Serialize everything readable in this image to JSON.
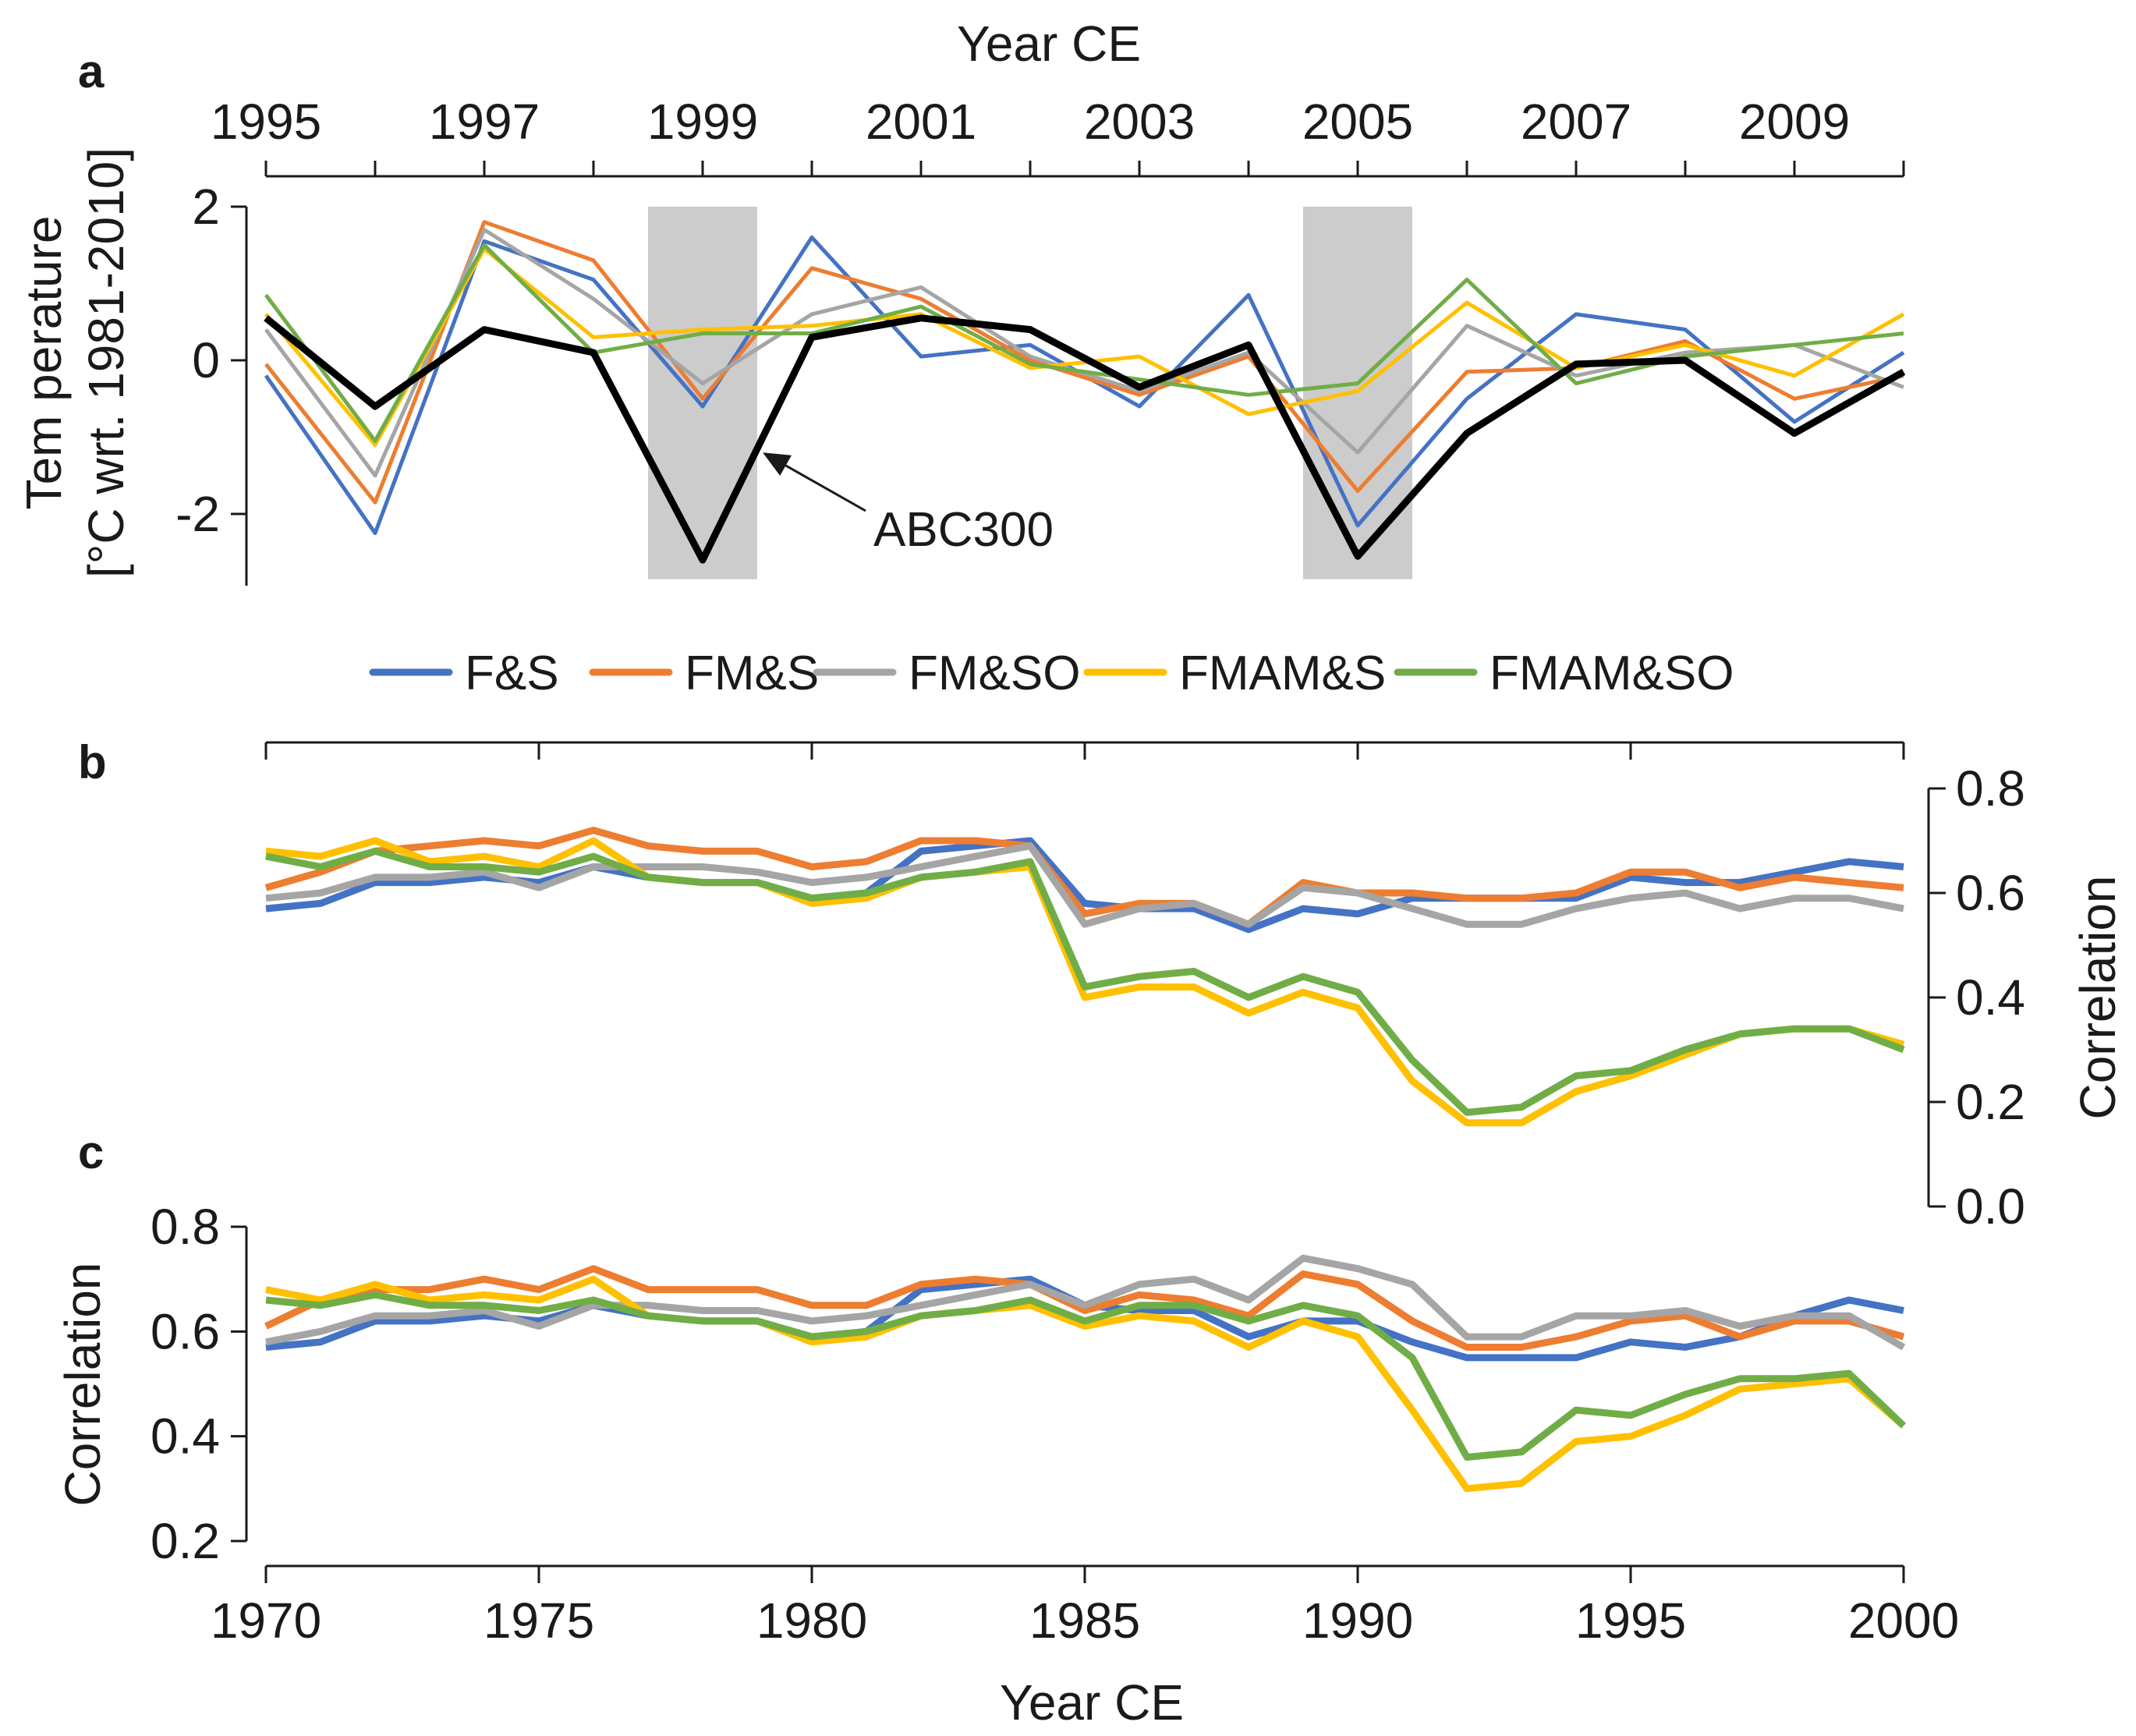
{
  "series_names": [
    "F&S",
    "FM&S",
    "FM&SO",
    "FMAM&S",
    "FMAM&SO"
  ],
  "colors": {
    "F&S": "#4472c4",
    "FM&S": "#ed7d31",
    "FM&SO": "#a5a5a5",
    "FMAM&S": "#ffc000",
    "FMAM&SO": "#70ad47",
    "ABC300": "#000000",
    "shade": "#cccccc"
  },
  "chart_data": [
    {
      "panel": "a",
      "type": "line",
      "xlabel": "Year CE",
      "ylabel_line1": "Tem perature",
      "ylabel_line2": "[°C wrt. 1981-2010]",
      "xlim": [
        1995,
        2010
      ],
      "ylim": [
        -2.85,
        2
      ],
      "x_ticks": [
        1995,
        1997,
        1999,
        2001,
        2003,
        2005,
        2007,
        2009
      ],
      "x_tick_labels": [
        "1995",
        "1997",
        "1999",
        "2001",
        "2003",
        "2005",
        "2007",
        "2009"
      ],
      "y_ticks": [
        2,
        0,
        -2
      ],
      "y_tick_labels": [
        "2",
        "0",
        "-2"
      ],
      "shaded_intervals": [
        [
          1998.5,
          1999.5
        ],
        [
          2004.5,
          2005.5
        ]
      ],
      "annotation": {
        "text": "ABC300",
        "target_x": 1999.55,
        "target_y": -1.2
      },
      "x": [
        1995,
        1996,
        1997,
        1998,
        1999,
        2000,
        2001,
        2002,
        2003,
        2004,
        2005,
        2006,
        2007,
        2008,
        2009,
        2010
      ],
      "series": [
        {
          "name": "F&S",
          "values": [
            -0.2,
            -2.25,
            1.55,
            1.05,
            -0.6,
            1.6,
            0.05,
            0.2,
            -0.6,
            0.85,
            -2.15,
            -0.5,
            0.6,
            0.4,
            -0.8,
            0.1
          ]
        },
        {
          "name": "FM&S",
          "values": [
            -0.05,
            -1.85,
            1.8,
            1.3,
            -0.5,
            1.2,
            0.8,
            0.0,
            -0.45,
            0.05,
            -1.7,
            -0.15,
            -0.1,
            0.25,
            -0.5,
            -0.2
          ]
        },
        {
          "name": "FM&SO",
          "values": [
            0.4,
            -1.5,
            1.7,
            0.8,
            -0.3,
            0.6,
            0.95,
            0.05,
            -0.4,
            0.1,
            -1.2,
            0.45,
            -0.2,
            0.1,
            0.2,
            -0.35
          ]
        },
        {
          "name": "FMAM&S",
          "values": [
            0.6,
            -1.1,
            1.45,
            0.3,
            0.4,
            0.45,
            0.6,
            -0.1,
            0.05,
            -0.7,
            -0.4,
            0.75,
            -0.1,
            0.2,
            -0.2,
            0.6
          ]
        },
        {
          "name": "FMAM&SO",
          "values": [
            0.85,
            -1.05,
            1.5,
            0.1,
            0.35,
            0.35,
            0.7,
            -0.05,
            -0.25,
            -0.45,
            -0.3,
            1.05,
            -0.3,
            0.05,
            0.2,
            0.35
          ]
        },
        {
          "name": "ABC300",
          "values": [
            0.55,
            -0.6,
            0.4,
            0.1,
            -2.6,
            0.3,
            0.55,
            0.4,
            -0.35,
            0.2,
            -2.55,
            -0.95,
            -0.05,
            0.0,
            -0.95,
            -0.15
          ]
        }
      ]
    },
    {
      "panel": "b",
      "type": "line",
      "xlabel": "",
      "ylabel": "Correlation",
      "xlim": [
        1970,
        2000
      ],
      "ylim": [
        0,
        0.8
      ],
      "y_ticks": [
        0.8,
        0.6,
        0.4,
        0.2,
        0.0
      ],
      "y_tick_labels": [
        "0.8",
        "0.6",
        "0.4",
        "0.2",
        "0.0"
      ],
      "x": [
        1970,
        1971,
        1972,
        1973,
        1974,
        1975,
        1976,
        1977,
        1978,
        1979,
        1980,
        1981,
        1982,
        1983,
        1984,
        1985,
        1986,
        1987,
        1988,
        1989,
        1990,
        1991,
        1992,
        1993,
        1994,
        1995,
        1996,
        1997,
        1998,
        1999,
        2000
      ],
      "series": [
        {
          "name": "F&S",
          "values": [
            0.57,
            0.58,
            0.62,
            0.62,
            0.63,
            0.62,
            0.65,
            0.63,
            0.62,
            0.62,
            0.59,
            0.6,
            0.68,
            0.69,
            0.7,
            0.58,
            0.57,
            0.57,
            0.53,
            0.57,
            0.56,
            0.59,
            0.59,
            0.59,
            0.59,
            0.63,
            0.62,
            0.62,
            0.64,
            0.66,
            0.65
          ]
        },
        {
          "name": "FM&S",
          "values": [
            0.61,
            0.64,
            0.68,
            0.69,
            0.7,
            0.69,
            0.72,
            0.69,
            0.68,
            0.68,
            0.65,
            0.66,
            0.7,
            0.7,
            0.69,
            0.56,
            0.58,
            0.58,
            0.54,
            0.62,
            0.6,
            0.6,
            0.59,
            0.59,
            0.6,
            0.64,
            0.64,
            0.61,
            0.63,
            0.62,
            0.61
          ]
        },
        {
          "name": "FM&SO",
          "values": [
            0.59,
            0.6,
            0.63,
            0.63,
            0.64,
            0.61,
            0.65,
            0.65,
            0.65,
            0.64,
            0.62,
            0.63,
            0.65,
            0.67,
            0.69,
            0.54,
            0.57,
            0.58,
            0.54,
            0.61,
            0.6,
            0.57,
            0.54,
            0.54,
            0.57,
            0.59,
            0.6,
            0.57,
            0.59,
            0.59,
            0.57
          ]
        },
        {
          "name": "FMAM&S",
          "values": [
            0.68,
            0.67,
            0.7,
            0.66,
            0.67,
            0.65,
            0.7,
            0.63,
            0.62,
            0.62,
            0.58,
            0.59,
            0.63,
            0.64,
            0.65,
            0.4,
            0.42,
            0.42,
            0.37,
            0.41,
            0.38,
            0.24,
            0.16,
            0.16,
            0.22,
            0.25,
            0.29,
            0.33,
            0.34,
            0.34,
            0.31
          ]
        },
        {
          "name": "FMAM&SO",
          "values": [
            0.67,
            0.65,
            0.68,
            0.65,
            0.65,
            0.64,
            0.67,
            0.63,
            0.62,
            0.62,
            0.59,
            0.6,
            0.63,
            0.64,
            0.66,
            0.42,
            0.44,
            0.45,
            0.4,
            0.44,
            0.41,
            0.28,
            0.18,
            0.19,
            0.25,
            0.26,
            0.3,
            0.33,
            0.34,
            0.34,
            0.3
          ]
        }
      ]
    },
    {
      "panel": "c",
      "type": "line",
      "xlabel": "Year CE",
      "ylabel": "Correlation",
      "xlim": [
        1970,
        2000
      ],
      "ylim": [
        0.2,
        0.8
      ],
      "x_ticks": [
        1970,
        1975,
        1980,
        1985,
        1990,
        1995,
        2000
      ],
      "x_tick_labels": [
        "1970",
        "1975",
        "1980",
        "1985",
        "1990",
        "1995",
        "2000"
      ],
      "y_ticks": [
        0.8,
        0.6,
        0.4,
        0.2
      ],
      "y_tick_labels": [
        "0.8",
        "0.6",
        "0.4",
        "0.2"
      ],
      "x": [
        1970,
        1971,
        1972,
        1973,
        1974,
        1975,
        1976,
        1977,
        1978,
        1979,
        1980,
        1981,
        1982,
        1983,
        1984,
        1985,
        1986,
        1987,
        1988,
        1989,
        1990,
        1991,
        1992,
        1993,
        1994,
        1995,
        1996,
        1997,
        1998,
        1999,
        2000
      ],
      "series": [
        {
          "name": "F&S",
          "values": [
            0.57,
            0.58,
            0.62,
            0.62,
            0.63,
            0.62,
            0.65,
            0.63,
            0.62,
            0.62,
            0.59,
            0.6,
            0.68,
            0.69,
            0.7,
            0.65,
            0.64,
            0.64,
            0.59,
            0.62,
            0.62,
            0.58,
            0.55,
            0.55,
            0.55,
            0.58,
            0.57,
            0.59,
            0.63,
            0.66,
            0.64
          ]
        },
        {
          "name": "FM&S",
          "values": [
            0.61,
            0.66,
            0.68,
            0.68,
            0.7,
            0.68,
            0.72,
            0.68,
            0.68,
            0.68,
            0.65,
            0.65,
            0.69,
            0.7,
            0.69,
            0.64,
            0.67,
            0.66,
            0.63,
            0.71,
            0.69,
            0.62,
            0.57,
            0.57,
            0.59,
            0.62,
            0.63,
            0.59,
            0.62,
            0.62,
            0.59
          ]
        },
        {
          "name": "FM&SO",
          "values": [
            0.58,
            0.6,
            0.63,
            0.63,
            0.64,
            0.61,
            0.65,
            0.65,
            0.64,
            0.64,
            0.62,
            0.63,
            0.65,
            0.67,
            0.69,
            0.65,
            0.69,
            0.7,
            0.66,
            0.74,
            0.72,
            0.69,
            0.59,
            0.59,
            0.63,
            0.63,
            0.64,
            0.61,
            0.63,
            0.63,
            0.57
          ]
        },
        {
          "name": "FMAM&S",
          "values": [
            0.68,
            0.66,
            0.69,
            0.66,
            0.67,
            0.66,
            0.7,
            0.63,
            0.62,
            0.62,
            0.58,
            0.59,
            0.63,
            0.64,
            0.65,
            0.61,
            0.63,
            0.62,
            0.57,
            0.62,
            0.59,
            0.45,
            0.3,
            0.31,
            0.39,
            0.4,
            0.44,
            0.49,
            0.5,
            0.51,
            0.42
          ]
        },
        {
          "name": "FMAM&SO",
          "values": [
            0.66,
            0.65,
            0.67,
            0.65,
            0.65,
            0.64,
            0.66,
            0.63,
            0.62,
            0.62,
            0.59,
            0.6,
            0.63,
            0.64,
            0.66,
            0.62,
            0.65,
            0.65,
            0.62,
            0.65,
            0.63,
            0.55,
            0.36,
            0.37,
            0.45,
            0.44,
            0.48,
            0.51,
            0.51,
            0.52,
            0.42
          ]
        }
      ]
    }
  ]
}
